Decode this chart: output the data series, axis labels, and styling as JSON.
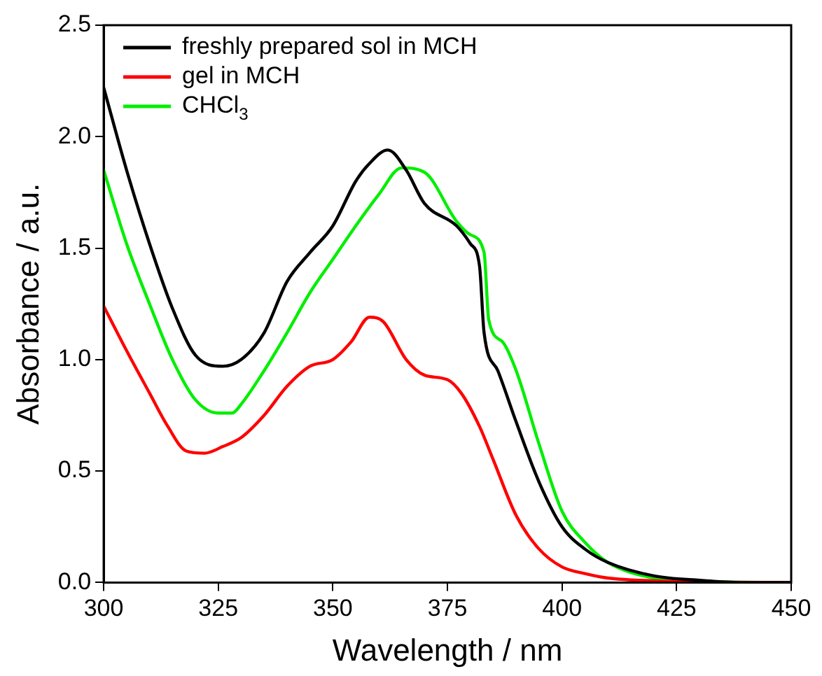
{
  "chart_data": {
    "type": "line",
    "xlabel": "Wavelength / nm",
    "ylabel": "Absorbance / a.u.",
    "xlim": [
      300,
      450
    ],
    "xticks": [
      300,
      325,
      350,
      375,
      400,
      425,
      450
    ],
    "ylim": [
      0,
      2.5
    ],
    "yticks": [
      {
        "value": 0,
        "label": "0.0"
      },
      {
        "value": 0.5,
        "label": "0.5"
      },
      {
        "value": 1,
        "label": "1.0"
      },
      {
        "value": 1.5,
        "label": "1.5"
      },
      {
        "value": 2,
        "label": "2.0"
      },
      {
        "value": 2.5,
        "label": "2.5"
      }
    ],
    "grid": false,
    "legend": "top left",
    "marker": "none",
    "line_style": "solid",
    "series": [
      {
        "name": "freshly prepared sol in MCH",
        "color": "#000000",
        "x": [
          300,
          305,
          310,
          315,
          320,
          326,
          330,
          335,
          340,
          345,
          350,
          355,
          358,
          362,
          366,
          370,
          377,
          380,
          382,
          383,
          386,
          390,
          395,
          400,
          405,
          410,
          420,
          430,
          440,
          450
        ],
        "values": [
          2.22,
          1.85,
          1.52,
          1.23,
          1.02,
          0.97,
          1.0,
          1.12,
          1.35,
          1.48,
          1.6,
          1.8,
          1.88,
          1.94,
          1.85,
          1.7,
          1.6,
          1.52,
          1.42,
          1.12,
          0.95,
          0.72,
          0.45,
          0.25,
          0.15,
          0.09,
          0.03,
          0.01,
          0.0,
          0.0
        ]
      },
      {
        "name": "gel in MCH",
        "color": "#ff0000",
        "x": [
          300,
          305,
          310,
          314,
          318,
          322,
          326,
          330,
          335,
          340,
          345,
          350,
          354,
          358,
          361,
          366,
          370,
          375,
          378,
          382,
          385,
          390,
          395,
          400,
          405,
          410,
          425,
          450
        ],
        "values": [
          1.24,
          1.04,
          0.85,
          0.7,
          0.59,
          0.58,
          0.61,
          0.65,
          0.75,
          0.88,
          0.97,
          1.0,
          1.08,
          1.19,
          1.17,
          1.0,
          0.93,
          0.91,
          0.85,
          0.7,
          0.55,
          0.3,
          0.15,
          0.07,
          0.04,
          0.02,
          0.005,
          0.0
        ]
      },
      {
        "name": "CHCl$_{3}$",
        "color": "#00ee00",
        "x": [
          300,
          305,
          310,
          315,
          320,
          325,
          328,
          330,
          335,
          340,
          345,
          350,
          355,
          360,
          365,
          370,
          377,
          380,
          383,
          384,
          387,
          390,
          395,
          400,
          405,
          410,
          420,
          430,
          450
        ],
        "values": [
          1.85,
          1.52,
          1.25,
          1.0,
          0.82,
          0.76,
          0.76,
          0.8,
          0.95,
          1.12,
          1.3,
          1.45,
          1.6,
          1.74,
          1.86,
          1.84,
          1.62,
          1.56,
          1.48,
          1.18,
          1.08,
          0.95,
          0.62,
          0.32,
          0.18,
          0.09,
          0.02,
          0.005,
          0.0
        ]
      }
    ]
  }
}
